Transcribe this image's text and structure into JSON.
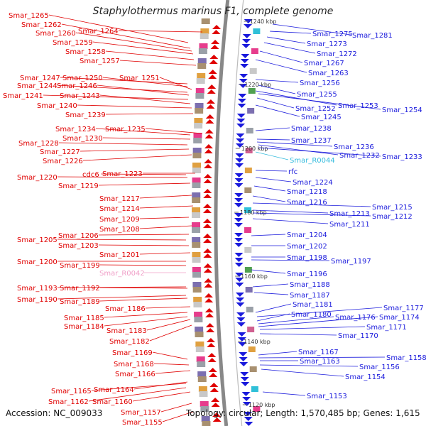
{
  "title": "Staphylothermus marinus F1, complete genome",
  "footer": {
    "accession": "Accession: NC_009033",
    "summary": "Topology: circular; Length: 1,570,485 bp; Genes: 1,615"
  },
  "colors": {
    "forward": "#e00000",
    "reverse": "#1a1adc",
    "rna": "#33bbdd",
    "rna_forward": "#f0a0c8",
    "backbone": "#888888"
  },
  "kbp_markers": [
    "1240 kbp",
    "1220 kbp",
    "1200 kbp",
    "1180 kbp",
    "1160 kbp",
    "1140 kbp",
    "1120 kbp"
  ],
  "left_labels": [
    [
      "Smar_1265",
      12,
      21,
      265,
      60
    ],
    [
      "Smar_1262",
      30,
      34,
      268,
      68
    ],
    [
      "Smar_1260",
      50,
      46,
      270,
      72
    ],
    [
      "Smar_1264",
      110,
      43,
      285,
      45
    ],
    [
      "Smar_1259",
      74,
      59,
      272,
      76
    ],
    [
      "Smar_1258",
      92,
      72,
      273,
      84
    ],
    [
      "Smar_1257",
      112,
      85,
      276,
      92
    ],
    [
      "Smar_1247",
      28,
      109,
      264,
      118
    ],
    [
      "Smar_1250",
      88,
      109,
      264,
      122
    ],
    [
      "Smar_1251",
      168,
      109,
      270,
      126
    ],
    [
      "Smar_1244",
      24,
      120,
      264,
      130
    ],
    [
      "Smar_1246",
      80,
      120,
      266,
      134
    ],
    [
      "Smar_1241",
      4,
      134,
      265,
      140
    ],
    [
      "Smar_1243",
      84,
      134,
      268,
      146
    ],
    [
      "Smar_1240",
      52,
      148,
      270,
      152
    ],
    [
      "Smar_1239",
      92,
      161,
      272,
      160
    ],
    [
      "Smar_1234",
      78,
      181,
      268,
      190
    ],
    [
      "Smar_1235",
      148,
      181,
      285,
      188
    ],
    [
      "Smar_1230",
      88,
      194,
      268,
      196
    ],
    [
      "Smar_1228",
      26,
      201,
      264,
      204
    ],
    [
      "Smar_1227",
      56,
      213,
      266,
      210
    ],
    [
      "Smar_1226",
      60,
      226,
      270,
      218
    ],
    [
      "Smar_1220",
      24,
      249,
      264,
      250
    ],
    [
      "cdc6",
      116,
      245,
      262,
      246
    ],
    [
      "Smar_1223",
      144,
      244,
      275,
      244
    ],
    [
      "Smar_1219",
      82,
      261,
      268,
      258
    ],
    [
      "Smar_1217",
      140,
      279,
      270,
      275
    ],
    [
      "Smar_1214",
      140,
      293,
      272,
      290
    ],
    [
      "Smar_1209",
      140,
      308,
      266,
      306
    ],
    [
      "Smar_1208",
      140,
      322,
      270,
      318
    ],
    [
      "Smar_1206",
      82,
      331,
      266,
      330
    ],
    [
      "Smar_1205",
      24,
      337,
      262,
      338
    ],
    [
      "Smar_1203",
      82,
      345,
      266,
      346
    ],
    [
      "Smar_1201",
      140,
      358,
      268,
      356
    ],
    [
      "Smar_1200",
      24,
      368,
      262,
      368
    ],
    [
      "Smar_1199",
      84,
      373,
      262,
      374
    ],
    [
      "Smar_1193",
      24,
      405,
      262,
      404
    ],
    [
      "Smar_1192",
      84,
      405,
      264,
      406
    ],
    [
      "Smar_1190",
      24,
      421,
      262,
      416
    ],
    [
      "Smar_1189",
      84,
      424,
      264,
      420
    ],
    [
      "Smar_1186",
      148,
      434,
      268,
      432
    ],
    [
      "Smar_1185",
      90,
      447,
      264,
      440
    ],
    [
      "Smar_1184",
      90,
      459,
      264,
      446
    ],
    [
      "Smar_1183",
      150,
      465,
      268,
      450
    ],
    [
      "Smar_1182",
      154,
      480,
      270,
      458
    ],
    [
      "Smar_1169",
      158,
      496,
      264,
      506
    ],
    [
      "Smar_1168",
      160,
      512,
      266,
      514
    ],
    [
      "Smar_1166",
      162,
      526,
      268,
      522
    ],
    [
      "Smar_1164",
      132,
      548,
      264,
      538
    ],
    [
      "Smar_1165",
      72,
      550,
      262,
      540
    ],
    [
      "Smar_1162",
      68,
      565,
      262,
      546
    ],
    [
      "Smar_1160",
      130,
      565,
      268,
      552
    ],
    [
      "Smar_1157",
      170,
      580,
      270,
      568
    ],
    [
      "Smar_1155",
      172,
      594,
      272,
      580
    ]
  ],
  "left_rna": [
    [
      "Smar_R0042",
      140,
      384,
      262,
      384
    ]
  ],
  "right_labels": [
    [
      "Smar_1275",
      440,
      47,
      380,
      44
    ],
    [
      "Smar_1281",
      496,
      49,
      384,
      34
    ],
    [
      "Smar_1273",
      432,
      61,
      376,
      52
    ],
    [
      "Smar_1272",
      446,
      75,
      372,
      60
    ],
    [
      "Smar_1267",
      428,
      88,
      366,
      72
    ],
    [
      "Smar_1263",
      434,
      102,
      360,
      84
    ],
    [
      "Smar_1256",
      422,
      116,
      360,
      112
    ],
    [
      "Smar_1255",
      418,
      132,
      364,
      120
    ],
    [
      "Smar_1253",
      476,
      148,
      360,
      128
    ],
    [
      "Smar_1254",
      538,
      154,
      364,
      132
    ],
    [
      "Smar_1252",
      416,
      152,
      362,
      138
    ],
    [
      "Smar_1245",
      424,
      164,
      360,
      148
    ],
    [
      "Smar_1238",
      410,
      180,
      360,
      184
    ],
    [
      "Smar_1237",
      410,
      197,
      362,
      196
    ],
    [
      "Smar_1236",
      470,
      206,
      362,
      200
    ],
    [
      "Smar_1232",
      478,
      218,
      364,
      204
    ],
    [
      "Smar_1233",
      538,
      220,
      364,
      208
    ],
    [
      "rfc",
      406,
      241,
      360,
      240
    ],
    [
      "Smar_1224",
      412,
      256,
      360,
      250
    ],
    [
      "Smar_1218",
      404,
      269,
      358,
      262
    ],
    [
      "Smar_1216",
      404,
      284,
      356,
      276
    ],
    [
      "Smar_1215",
      524,
      291,
      356,
      286
    ],
    [
      "Smar_1213",
      464,
      300,
      356,
      296
    ],
    [
      "Smar_1212",
      524,
      304,
      356,
      300
    ],
    [
      "Smar_1211",
      464,
      315,
      356,
      308
    ],
    [
      "Smar_1204",
      404,
      330,
      354,
      332
    ],
    [
      "Smar_1202",
      404,
      346,
      354,
      346
    ],
    [
      "Smar_1198",
      404,
      362,
      354,
      362
    ],
    [
      "Smar_1197",
      466,
      367,
      354,
      366
    ],
    [
      "Smar_1196",
      404,
      385,
      354,
      380
    ],
    [
      "Smar_1188",
      408,
      400,
      356,
      404
    ],
    [
      "Smar_1187",
      408,
      415,
      358,
      412
    ],
    [
      "Smar_1181",
      412,
      428,
      360,
      440
    ],
    [
      "Smar_1177",
      540,
      433,
      362,
      446
    ],
    [
      "Smar_1180",
      410,
      442,
      362,
      452
    ],
    [
      "Smar_1176",
      472,
      446,
      364,
      456
    ],
    [
      "Smar_1174",
      534,
      446,
      364,
      460
    ],
    [
      "Smar_1171",
      516,
      460,
      366,
      464
    ],
    [
      "Smar_1170",
      476,
      472,
      366,
      470
    ],
    [
      "Smar_1167",
      420,
      495,
      364,
      500
    ],
    [
      "Smar_1158",
      544,
      503,
      364,
      504
    ],
    [
      "Smar_1163",
      422,
      508,
      366,
      508
    ],
    [
      "Smar_1156",
      506,
      516,
      366,
      514
    ],
    [
      "Smar_1154",
      486,
      530,
      368,
      520
    ],
    [
      "Smar_1153",
      432,
      557,
      370,
      552
    ]
  ],
  "right_rna": [
    [
      "Smar_R0044",
      408,
      225,
      360,
      214
    ]
  ]
}
